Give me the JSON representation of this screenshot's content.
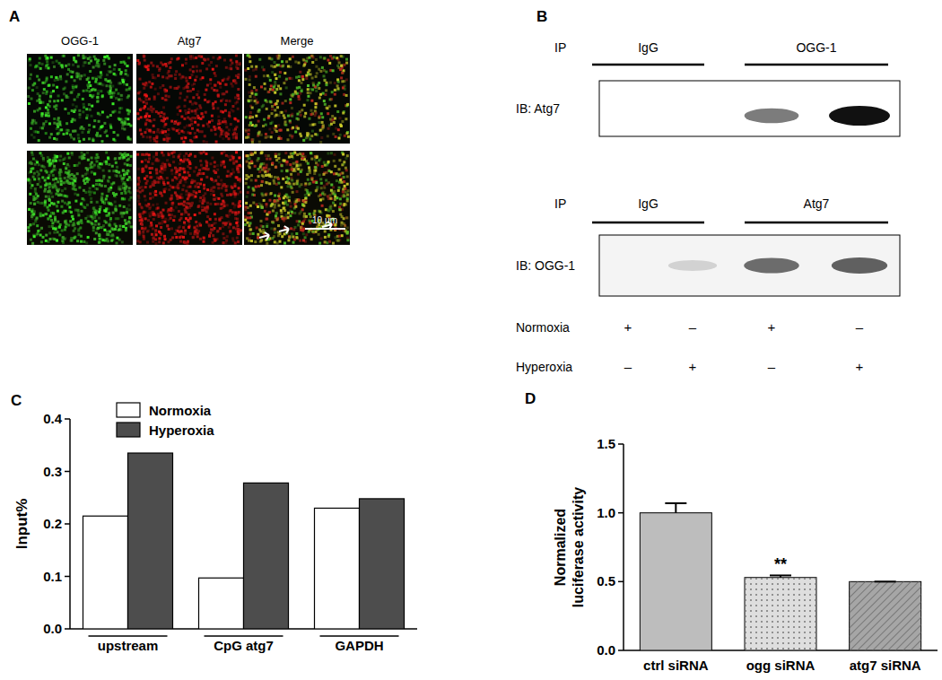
{
  "panel_labels": [
    "A",
    "B",
    "C",
    "D"
  ],
  "panel_a": {
    "columns": [
      "OGG-1",
      "Atg7",
      "Merge"
    ],
    "scale_bar": "10 µm"
  },
  "panel_b": {
    "blots": [
      {
        "ip_label": "IP",
        "ip_groups": [
          "IgG",
          "OGG-1"
        ],
        "ib_label": "IB: Atg7",
        "band_intensity": [
          0,
          0,
          0.55,
          1
        ]
      },
      {
        "ip_label": "IP",
        "ip_groups": [
          "IgG",
          "Atg7"
        ],
        "ib_label": "IB: OGG-1",
        "band_intensity": [
          0,
          0.15,
          0.6,
          0.65
        ]
      }
    ],
    "conditions": [
      {
        "name": "Normoxia",
        "signs": [
          "+",
          "–",
          "+",
          "–"
        ]
      },
      {
        "name": "Hyperoxia",
        "signs": [
          "–",
          "+",
          "–",
          "+"
        ]
      }
    ]
  },
  "chart_data": [
    {
      "type": "bar",
      "y_label": "Input%",
      "categories": [
        "upstream",
        "CpG atg7",
        "GAPDH"
      ],
      "series": [
        {
          "name": "Normoxia",
          "color": "#ffffff",
          "values": [
            0.215,
            0.097,
            0.23
          ]
        },
        {
          "name": "Hyperoxia",
          "color": "#4d4d4d",
          "values": [
            0.335,
            0.278,
            0.248
          ]
        }
      ],
      "ylim": [
        0,
        0.4
      ],
      "yticks": [
        {
          "value": 0,
          "label": "0.0"
        },
        0.1,
        0.2,
        0.3,
        0.4
      ],
      "legend": "upper left"
    },
    {
      "type": "bar",
      "y_label": [
        "Normalized",
        "luciferase activity"
      ],
      "categories": [
        "ctrl siRNA",
        "ogg siRNA",
        "atg7 siRNA"
      ],
      "values": [
        1.0,
        0.53,
        0.5
      ],
      "errors": [
        0.07,
        0.015,
        0.0
      ],
      "significance": [
        null,
        "**",
        null
      ],
      "colors": [
        "#bdbdbd",
        "#dedede",
        "#a6a6a6"
      ],
      "ylim": [
        0,
        1.5
      ],
      "yticks": [
        {
          "value": 0,
          "label": "0.0"
        },
        0.5,
        {
          "value": 1,
          "label": "1.0"
        },
        1.5
      ]
    }
  ]
}
